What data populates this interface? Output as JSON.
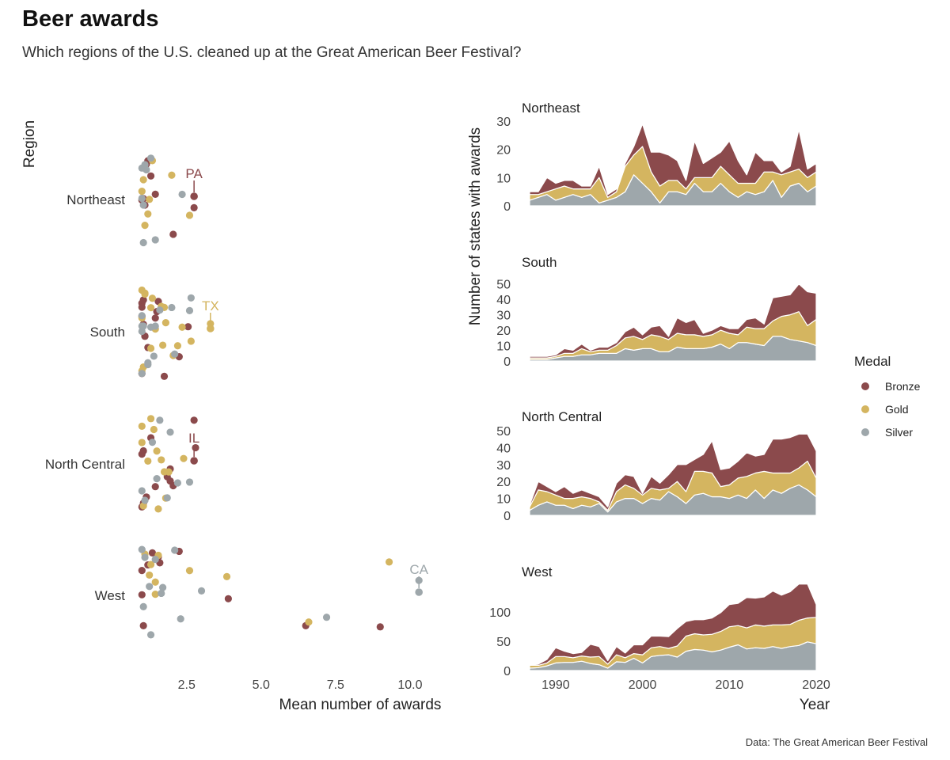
{
  "title": "Beer awards",
  "subtitle": "Which regions of the U.S. cleaned up at the Great American Beer Festival?",
  "caption": "Data: The Great American Beer Festival",
  "colors": {
    "Bronze": "#8b4a4c",
    "Gold": "#d4b560",
    "Silver": "#9ea7ab"
  },
  "legend": {
    "title": "Medal",
    "items": [
      "Bronze",
      "Gold",
      "Silver"
    ]
  },
  "chart_data": [
    {
      "type": "scatter",
      "xlabel": "Mean number of awards",
      "ylabel": "Region",
      "xlim": [
        0.7,
        10.8
      ],
      "xticks": [
        2.5,
        5.0,
        7.5,
        10.0
      ],
      "xtick_labels": [
        "2.5",
        "5.0",
        "7.5",
        "10.0"
      ],
      "categories": [
        "Northeast",
        "South",
        "North Central",
        "West"
      ],
      "annotations": [
        {
          "label": "PA",
          "region": "Northeast",
          "x": 2.75,
          "medal": "Bronze"
        },
        {
          "label": "TX",
          "region": "South",
          "x": 3.3,
          "medal": "Gold"
        },
        {
          "label": "IL",
          "region": "North Central",
          "x": 2.75,
          "medal": "Bronze"
        },
        {
          "label": "CA",
          "region": "West",
          "x": 10.3,
          "medal": "Silver"
        }
      ],
      "points": [
        {
          "region": "Northeast",
          "medal": "Bronze",
          "x": [
            1.05,
            1.1,
            1.15,
            1.3,
            1.45,
            1.0,
            1.2,
            2.05,
            2.75
          ]
        },
        {
          "region": "Northeast",
          "medal": "Gold",
          "x": [
            1.0,
            1.05,
            1.1,
            1.2,
            1.35,
            1.25,
            2.0,
            2.6
          ]
        },
        {
          "region": "Northeast",
          "medal": "Silver",
          "x": [
            1.0,
            1.05,
            1.0,
            1.15,
            1.3,
            1.45,
            1.05,
            1.1,
            2.35
          ]
        },
        {
          "region": "South",
          "medal": "Bronze",
          "x": [
            1.0,
            1.0,
            1.05,
            1.1,
            1.2,
            1.5,
            1.55,
            1.75,
            2.55,
            1.0,
            1.1,
            1.0,
            1.05,
            2.25,
            1.45
          ]
        },
        {
          "region": "South",
          "medal": "Gold",
          "x": [
            1.0,
            1.1,
            1.0,
            1.3,
            1.05,
            1.45,
            1.75,
            2.65,
            1.8,
            2.05,
            2.2,
            1.35,
            1.65,
            2.35,
            1.1,
            1.0,
            3.3,
            1.3,
            1.7
          ]
        },
        {
          "region": "South",
          "medal": "Silver",
          "x": [
            1.0,
            1.0,
            1.0,
            1.0,
            1.05,
            1.2,
            1.3,
            1.45,
            1.6,
            2.0,
            2.1,
            2.65,
            2.6,
            1.4,
            1.2
          ]
        },
        {
          "region": "North Central",
          "medal": "Bronze",
          "x": [
            1.0,
            1.05,
            1.15,
            1.45,
            1.85,
            1.95,
            2.75,
            2.8,
            1.05,
            1.3,
            1.0,
            1.95,
            2.05
          ]
        },
        {
          "region": "North Central",
          "medal": "Gold",
          "x": [
            1.0,
            1.05,
            1.3,
            1.5,
            1.75,
            2.4,
            1.0,
            1.55,
            1.65,
            1.8,
            1.9,
            1.2,
            1.4
          ]
        },
        {
          "region": "North Central",
          "medal": "Silver",
          "x": [
            1.0,
            1.1,
            1.35,
            1.6,
            1.95,
            2.2,
            2.6,
            1.5,
            1.85
          ]
        },
        {
          "region": "West",
          "medal": "Bronze",
          "x": [
            1.0,
            1.05,
            1.2,
            1.35,
            1.55,
            2.25,
            3.9,
            6.5,
            9.0,
            1.6,
            1.0
          ]
        },
        {
          "region": "West",
          "medal": "Gold",
          "x": [
            1.1,
            1.25,
            1.45,
            1.55,
            1.45,
            2.6,
            3.85,
            6.6,
            9.3,
            1.3
          ]
        },
        {
          "region": "West",
          "medal": "Silver",
          "x": [
            1.0,
            1.05,
            1.1,
            1.25,
            1.45,
            1.65,
            1.7,
            2.1,
            2.3,
            3.0,
            7.2,
            10.3,
            1.3
          ]
        }
      ]
    },
    {
      "type": "area",
      "stacking": "stacked",
      "xlabel": "Year",
      "ylabel": "Number of states with awards",
      "xlim": [
        1987,
        2020
      ],
      "xticks": [
        1990,
        2000,
        2010,
        2020
      ],
      "x": [
        1987,
        1988,
        1989,
        1990,
        1991,
        1992,
        1993,
        1994,
        1995,
        1996,
        1997,
        1998,
        1999,
        2000,
        2001,
        2002,
        2003,
        2004,
        2005,
        2006,
        2007,
        2008,
        2009,
        2010,
        2011,
        2012,
        2013,
        2014,
        2015,
        2016,
        2017,
        2018,
        2019,
        2020
      ],
      "series_order": [
        "Silver",
        "Gold",
        "Bronze"
      ],
      "facets": [
        {
          "name": "Northeast",
          "ylim": [
            0,
            30
          ],
          "yticks": [
            0,
            10,
            20,
            30
          ],
          "series": [
            {
              "name": "Silver",
              "values": [
                2,
                3,
                4,
                2,
                3,
                4,
                3,
                4,
                1,
                2,
                3,
                5,
                11,
                8,
                5,
                1,
                5,
                5,
                4,
                8,
                5,
                5,
                8,
                5,
                3,
                5,
                4,
                5,
                9,
                3,
                7,
                8,
                5,
                7
              ]
            },
            {
              "name": "Gold",
              "values": [
                2,
                1,
                1,
                4,
                4,
                2,
                3,
                2,
                9,
                1,
                2,
                9,
                7,
                13,
                7,
                6,
                4,
                4,
                2,
                2,
                5,
                5,
                6,
                6,
                5,
                3,
                4,
                7,
                3,
                8,
                5,
                5,
                5,
                5
              ]
            },
            {
              "name": "Bronze",
              "values": [
                1,
                1,
                5,
                2,
                2,
                3,
                1,
                1,
                4,
                1,
                1,
                1,
                3,
                8,
                7,
                12,
                9,
                7,
                3,
                13,
                5,
                7,
                5,
                12,
                8,
                3,
                11,
                4,
                4,
                1,
                2,
                14,
                3,
                3
              ]
            }
          ]
        },
        {
          "name": "South",
          "ylim": [
            0,
            55
          ],
          "yticks": [
            0,
            10,
            20,
            30,
            40,
            50
          ],
          "series": [
            {
              "name": "Silver",
              "values": [
                1,
                1,
                1,
                2,
                3,
                3,
                4,
                4,
                5,
                5,
                5,
                8,
                7,
                8,
                8,
                6,
                6,
                9,
                8,
                8,
                8,
                9,
                11,
                8,
                12,
                12,
                11,
                10,
                16,
                16,
                14,
                13,
                12,
                10
              ]
            },
            {
              "name": "Gold",
              "values": [
                1,
                1,
                1,
                1,
                2,
                2,
                4,
                2,
                2,
                2,
                5,
                7,
                9,
                6,
                9,
                10,
                8,
                9,
                9,
                9,
                8,
                8,
                9,
                10,
                5,
                10,
                10,
                11,
                10,
                13,
                16,
                19,
                11,
                17
              ]
            },
            {
              "name": "Bronze",
              "values": [
                1,
                1,
                1,
                1,
                3,
                2,
                3,
                1,
                2,
                2,
                2,
                4,
                6,
                3,
                5,
                7,
                2,
                10,
                8,
                10,
                2,
                3,
                3,
                3,
                4,
                5,
                7,
                3,
                15,
                13,
                13,
                18,
                22,
                17
              ]
            }
          ]
        },
        {
          "name": "North Central",
          "ylim": [
            0,
            50
          ],
          "yticks": [
            0,
            10,
            20,
            30,
            40,
            50
          ],
          "series": [
            {
              "name": "Silver",
              "values": [
                3,
                6,
                8,
                6,
                6,
                4,
                6,
                5,
                7,
                2,
                8,
                10,
                10,
                7,
                10,
                9,
                14,
                11,
                7,
                12,
                13,
                11,
                11,
                10,
                12,
                10,
                15,
                10,
                15,
                13,
                16,
                18,
                15,
                11
              ]
            },
            {
              "name": "Gold",
              "values": [
                2,
                9,
                6,
                6,
                4,
                6,
                5,
                5,
                1,
                1,
                6,
                8,
                6,
                5,
                6,
                6,
                2,
                9,
                7,
                14,
                13,
                14,
                6,
                8,
                10,
                13,
                10,
                16,
                10,
                12,
                9,
                10,
                17,
                11
              ]
            },
            {
              "name": "Bronze",
              "values": [
                1,
                5,
                3,
                2,
                7,
                3,
                4,
                3,
                3,
                2,
                5,
                6,
                7,
                1,
                7,
                4,
                8,
                10,
                16,
                7,
                10,
                19,
                10,
                10,
                10,
                14,
                10,
                10,
                20,
                20,
                21,
                20,
                16,
                16
              ]
            }
          ]
        },
        {
          "name": "West",
          "ylim": [
            0,
            145
          ],
          "yticks": [
            0,
            50,
            100
          ],
          "series": [
            {
              "name": "Silver",
              "values": [
                4,
                5,
                8,
                13,
                14,
                14,
                16,
                12,
                10,
                4,
                15,
                14,
                21,
                13,
                24,
                26,
                27,
                23,
                33,
                36,
                35,
                32,
                35,
                40,
                44,
                37,
                39,
                38,
                41,
                38,
                41,
                43,
                49,
                46
              ]
            },
            {
              "name": "Gold",
              "values": [
                5,
                4,
                5,
                11,
                10,
                8,
                9,
                11,
                14,
                7,
                12,
                8,
                8,
                14,
                15,
                15,
                11,
                19,
                26,
                27,
                26,
                30,
                32,
                35,
                33,
                36,
                39,
                38,
                37,
                40,
                38,
                43,
                41,
                45
              ]
            },
            {
              "name": "Bronze",
              "values": [
                1,
                2,
                6,
                15,
                9,
                7,
                6,
                22,
                17,
                6,
                14,
                8,
                15,
                17,
                20,
                18,
                20,
                30,
                25,
                24,
                26,
                28,
                32,
                38,
                38,
                52,
                46,
                50,
                58,
                51,
                56,
                62,
                58,
                22
              ]
            }
          ]
        }
      ]
    }
  ]
}
